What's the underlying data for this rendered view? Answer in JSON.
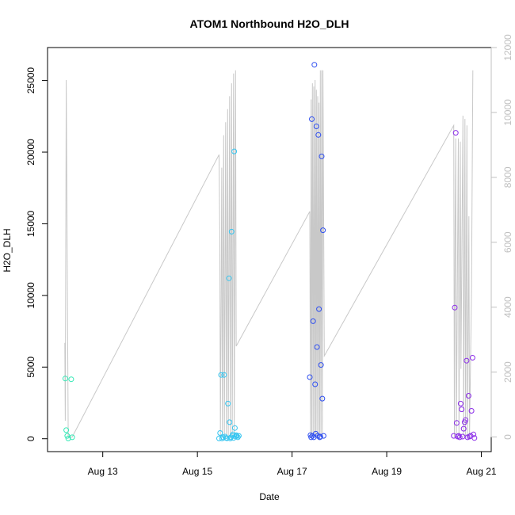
{
  "chart_data": {
    "type": "scatter",
    "title": "ATOM1 Northbound H2O_DLH",
    "xlabel": "Date",
    "ylabel": "H2O_DLH",
    "x_range": [
      "2014-08-11T20:00",
      "2014-08-21T05:00"
    ],
    "x_ticks": [
      {
        "date": "2014-08-13T00:00",
        "label": "Aug 13"
      },
      {
        "date": "2014-08-15T00:00",
        "label": "Aug 15"
      },
      {
        "date": "2014-08-17T00:00",
        "label": "Aug 17"
      },
      {
        "date": "2014-08-19T00:00",
        "label": "Aug 19"
      },
      {
        "date": "2014-08-21T00:00",
        "label": "Aug 21"
      }
    ],
    "ylim": [
      -900,
      27300
    ],
    "y_ticks": [
      0,
      5000,
      10000,
      15000,
      20000,
      25000
    ],
    "y2lim": [
      -450,
      12000
    ],
    "y2_ticks": [
      0,
      2000,
      4000,
      6000,
      8000,
      10000,
      12000
    ],
    "grid": false,
    "point_series": [
      {
        "color": "#33e8b5",
        "points": [
          [
            "2014-08-12T05:00",
            4200
          ],
          [
            "2014-08-12T05:30",
            600
          ],
          [
            "2014-08-12T06:00",
            200
          ],
          [
            "2014-08-12T06:30",
            20
          ],
          [
            "2014-08-12T08:00",
            4150
          ],
          [
            "2014-08-12T08:30",
            100
          ]
        ]
      },
      {
        "color": "#36c5f0",
        "points": [
          [
            "2014-08-15T11:00",
            20
          ],
          [
            "2014-08-15T11:30",
            400
          ],
          [
            "2014-08-15T12:00",
            4450
          ],
          [
            "2014-08-15T12:30",
            20
          ],
          [
            "2014-08-15T13:00",
            100
          ],
          [
            "2014-08-15T13:30",
            4450
          ],
          [
            "2014-08-15T14:00",
            150
          ],
          [
            "2014-08-15T14:30",
            50
          ],
          [
            "2014-08-15T15:00",
            30
          ],
          [
            "2014-08-15T15:30",
            2450
          ],
          [
            "2014-08-15T16:00",
            11200
          ],
          [
            "2014-08-15T16:20",
            1150
          ],
          [
            "2014-08-15T16:40",
            20
          ],
          [
            "2014-08-15T17:00",
            100
          ],
          [
            "2014-08-15T17:20",
            14450
          ],
          [
            "2014-08-15T17:40",
            200
          ],
          [
            "2014-08-15T18:00",
            300
          ],
          [
            "2014-08-15T18:20",
            50
          ],
          [
            "2014-08-15T18:40",
            20050
          ],
          [
            "2014-08-15T19:00",
            750
          ],
          [
            "2014-08-15T19:20",
            150
          ],
          [
            "2014-08-15T19:40",
            250
          ],
          [
            "2014-08-15T20:00",
            200
          ],
          [
            "2014-08-15T20:30",
            100
          ],
          [
            "2014-08-15T21:00",
            200
          ]
        ]
      },
      {
        "color": "#2f4ff0",
        "points": [
          [
            "2014-08-17T09:00",
            4300
          ],
          [
            "2014-08-17T09:20",
            250
          ],
          [
            "2014-08-17T09:40",
            100
          ],
          [
            "2014-08-17T10:00",
            22300
          ],
          [
            "2014-08-17T10:20",
            200
          ],
          [
            "2014-08-17T10:40",
            8200
          ],
          [
            "2014-08-17T11:00",
            100
          ],
          [
            "2014-08-17T11:20",
            26100
          ],
          [
            "2014-08-17T11:40",
            3800
          ],
          [
            "2014-08-17T12:00",
            350
          ],
          [
            "2014-08-17T12:20",
            21800
          ],
          [
            "2014-08-17T12:40",
            6400
          ],
          [
            "2014-08-17T13:00",
            200
          ],
          [
            "2014-08-17T13:20",
            21200
          ],
          [
            "2014-08-17T13:40",
            9050
          ],
          [
            "2014-08-17T14:00",
            100
          ],
          [
            "2014-08-17T14:20",
            150
          ],
          [
            "2014-08-17T14:40",
            5150
          ],
          [
            "2014-08-17T15:00",
            19700
          ],
          [
            "2014-08-17T15:20",
            2800
          ],
          [
            "2014-08-17T15:40",
            14550
          ],
          [
            "2014-08-17T16:00",
            200
          ]
        ]
      },
      {
        "color": "#8a2be8",
        "points": [
          [
            "2014-08-20T10:00",
            200
          ],
          [
            "2014-08-20T10:30",
            9150
          ],
          [
            "2014-08-20T11:00",
            21350
          ],
          [
            "2014-08-20T11:30",
            1100
          ],
          [
            "2014-08-20T12:00",
            150
          ],
          [
            "2014-08-20T12:30",
            200
          ],
          [
            "2014-08-20T13:00",
            100
          ],
          [
            "2014-08-20T13:30",
            2450
          ],
          [
            "2014-08-20T14:00",
            2050
          ],
          [
            "2014-08-20T14:30",
            150
          ],
          [
            "2014-08-20T15:00",
            700
          ],
          [
            "2014-08-20T15:30",
            1150
          ],
          [
            "2014-08-20T16:00",
            1300
          ],
          [
            "2014-08-20T16:30",
            5450
          ],
          [
            "2014-08-20T17:00",
            100
          ],
          [
            "2014-08-20T17:30",
            3000
          ],
          [
            "2014-08-20T18:00",
            150
          ],
          [
            "2014-08-20T18:30",
            200
          ],
          [
            "2014-08-20T19:00",
            1950
          ],
          [
            "2014-08-20T19:30",
            5650
          ],
          [
            "2014-08-20T20:00",
            300
          ],
          [
            "2014-08-20T20:30",
            50
          ]
        ]
      }
    ],
    "line_series": {
      "color": "#c8c8c8",
      "axis": "right",
      "points": [
        [
          "2014-08-12T04:45",
          2900
        ],
        [
          "2014-08-12T05:00",
          500
        ],
        [
          "2014-08-12T05:30",
          11000
        ],
        [
          "2014-08-12T06:30",
          0
        ],
        [
          "2014-08-12T07:45",
          0
        ],
        [
          "2014-08-12T08:30",
          0
        ],
        [
          "2014-08-15T11:00",
          8700
        ],
        [
          "2014-08-15T11:20",
          6300
        ],
        [
          "2014-08-15T11:40",
          0
        ],
        [
          "2014-08-15T12:20",
          8300
        ],
        [
          "2014-08-15T12:40",
          0
        ],
        [
          "2014-08-15T13:20",
          9300
        ],
        [
          "2014-08-15T13:40",
          0
        ],
        [
          "2014-08-15T14:20",
          9700
        ],
        [
          "2014-08-15T14:40",
          0
        ],
        [
          "2014-08-15T15:20",
          10100
        ],
        [
          "2014-08-15T15:40",
          0
        ],
        [
          "2014-08-15T16:20",
          10500
        ],
        [
          "2014-08-15T16:40",
          0
        ],
        [
          "2014-08-15T17:20",
          10900
        ],
        [
          "2014-08-15T17:40",
          0
        ],
        [
          "2014-08-15T18:20",
          11200
        ],
        [
          "2014-08-15T18:40",
          0
        ],
        [
          "2014-08-15T19:20",
          11300
        ],
        [
          "2014-08-15T19:40",
          2800
        ],
        [
          "2014-08-17T09:00",
          6950
        ],
        [
          "2014-08-17T09:20",
          0
        ],
        [
          "2014-08-17T09:40",
          10400
        ],
        [
          "2014-08-17T10:00",
          0
        ],
        [
          "2014-08-17T10:20",
          10900
        ],
        [
          "2014-08-17T10:40",
          0
        ],
        [
          "2014-08-17T11:00",
          10800
        ],
        [
          "2014-08-17T11:20",
          0
        ],
        [
          "2014-08-17T11:40",
          11000
        ],
        [
          "2014-08-17T12:00",
          0
        ],
        [
          "2014-08-17T12:20",
          10700
        ],
        [
          "2014-08-17T12:40",
          0
        ],
        [
          "2014-08-17T13:00",
          10500
        ],
        [
          "2014-08-17T13:20",
          0
        ],
        [
          "2014-08-17T13:40",
          10300
        ],
        [
          "2014-08-17T14:00",
          0
        ],
        [
          "2014-08-17T14:20",
          11300
        ],
        [
          "2014-08-17T14:40",
          0
        ],
        [
          "2014-08-17T15:00",
          11300
        ],
        [
          "2014-08-17T15:20",
          0
        ],
        [
          "2014-08-17T15:40",
          11300
        ],
        [
          "2014-08-17T16:20",
          2500
        ],
        [
          "2014-08-20T10:00",
          9600
        ],
        [
          "2014-08-20T10:20",
          0
        ],
        [
          "2014-08-20T10:40",
          6400
        ],
        [
          "2014-08-20T11:00",
          9200
        ],
        [
          "2014-08-20T11:20",
          0
        ],
        [
          "2014-08-20T12:20",
          9200
        ],
        [
          "2014-08-20T12:40",
          0
        ],
        [
          "2014-08-20T13:20",
          9100
        ],
        [
          "2014-08-20T13:40",
          2100
        ],
        [
          "2014-08-20T14:40",
          9900
        ],
        [
          "2014-08-20T15:00",
          0
        ],
        [
          "2014-08-20T15:40",
          9800
        ],
        [
          "2014-08-20T16:00",
          0
        ],
        [
          "2014-08-20T16:40",
          9600
        ],
        [
          "2014-08-20T17:00",
          0
        ],
        [
          "2014-08-20T17:40",
          6800
        ],
        [
          "2014-08-20T18:00",
          0
        ],
        [
          "2014-08-20T19:00",
          4500
        ],
        [
          "2014-08-20T19:40",
          11300
        ]
      ]
    }
  }
}
